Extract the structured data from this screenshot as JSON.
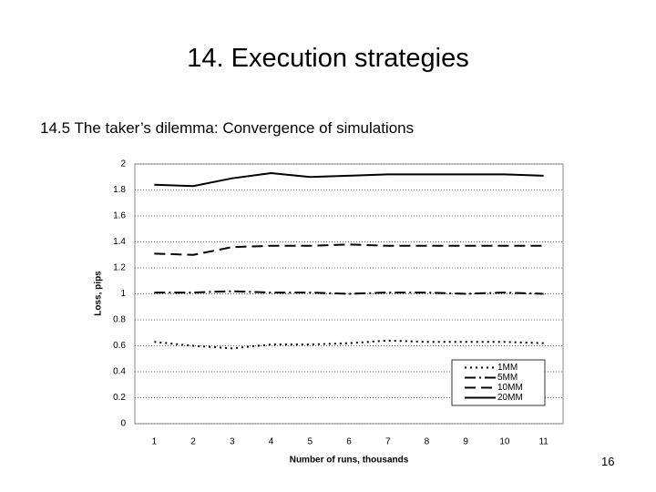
{
  "slide_title": "14. Execution strategies",
  "subtitle": "14.5 The taker’s dilemma: Convergence of simulations",
  "page_number": "16",
  "chart_data": {
    "type": "line",
    "xlabel": "Number of runs, thousands",
    "ylabel": "Loss, pips",
    "categories": [
      "1",
      "2",
      "3",
      "4",
      "5",
      "6",
      "7",
      "8",
      "9",
      "10",
      "11"
    ],
    "ylim": [
      0,
      2
    ],
    "yticks": [
      0,
      0.2,
      0.4,
      0.6,
      0.8,
      1,
      1.2,
      1.4,
      1.6,
      1.8,
      2
    ],
    "grid": true,
    "legend": "lower right",
    "series": [
      {
        "name": "1MM",
        "color": "#000000",
        "dash": "2,4",
        "values": [
          0.63,
          0.6,
          0.58,
          0.61,
          0.61,
          0.62,
          0.64,
          0.63,
          0.63,
          0.63,
          0.62
        ]
      },
      {
        "name": "5MM",
        "color": "#000000",
        "dash": "12,4,2,4",
        "values": [
          1.01,
          1.01,
          1.02,
          1.01,
          1.01,
          1.0,
          1.01,
          1.01,
          1.0,
          1.01,
          1.0
        ]
      },
      {
        "name": "10MM",
        "color": "#000000",
        "dash": "12,6",
        "values": [
          1.31,
          1.3,
          1.36,
          1.37,
          1.37,
          1.38,
          1.37,
          1.37,
          1.37,
          1.37,
          1.37
        ]
      },
      {
        "name": "20MM",
        "color": "#000000",
        "dash": "none",
        "values": [
          1.84,
          1.83,
          1.89,
          1.93,
          1.9,
          1.91,
          1.92,
          1.92,
          1.92,
          1.92,
          1.91
        ]
      }
    ]
  }
}
